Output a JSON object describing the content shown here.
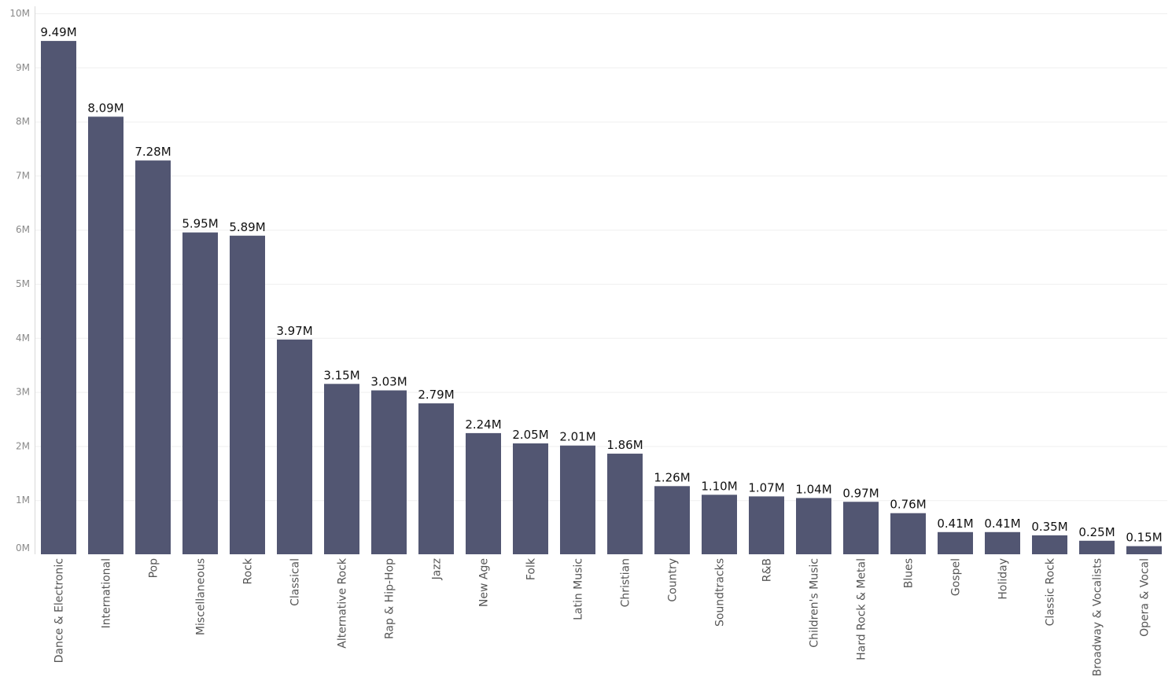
{
  "chart_data": {
    "type": "bar",
    "categories": [
      "Dance & Electronic",
      "International",
      "Pop",
      "Miscellaneous",
      "Rock",
      "Classical",
      "Alternative Rock",
      "Rap & Hip-Hop",
      "Jazz",
      "New Age",
      "Folk",
      "Latin Music",
      "Christian",
      "Country",
      "Soundtracks",
      "R&B",
      "Children's Music",
      "Hard Rock & Metal",
      "Blues",
      "Gospel",
      "Holiday",
      "Classic Rock",
      "Broadway & Vocalists",
      "Opera & Vocal"
    ],
    "values": [
      9.49,
      8.09,
      7.28,
      5.95,
      5.89,
      3.97,
      3.15,
      3.03,
      2.79,
      2.24,
      2.05,
      2.01,
      1.86,
      1.26,
      1.1,
      1.07,
      1.04,
      0.97,
      0.76,
      0.41,
      0.41,
      0.35,
      0.25,
      0.15
    ],
    "data_labels": [
      "9.49M",
      "8.09M",
      "7.28M",
      "5.95M",
      "5.89M",
      "3.97M",
      "3.15M",
      "3.03M",
      "2.79M",
      "2.24M",
      "2.05M",
      "2.01M",
      "1.86M",
      "1.26M",
      "1.10M",
      "1.07M",
      "1.04M",
      "0.97M",
      "0.76M",
      "0.41M",
      "0.41M",
      "0.35M",
      "0.25M",
      "0.15M"
    ],
    "y_ticks": [
      "0M",
      "1M",
      "2M",
      "3M",
      "4M",
      "5M",
      "6M",
      "7M",
      "8M",
      "9M",
      "10M"
    ],
    "ylim": [
      0,
      10
    ],
    "y_unit": "M",
    "grid": true,
    "bar_color": "#525672"
  }
}
